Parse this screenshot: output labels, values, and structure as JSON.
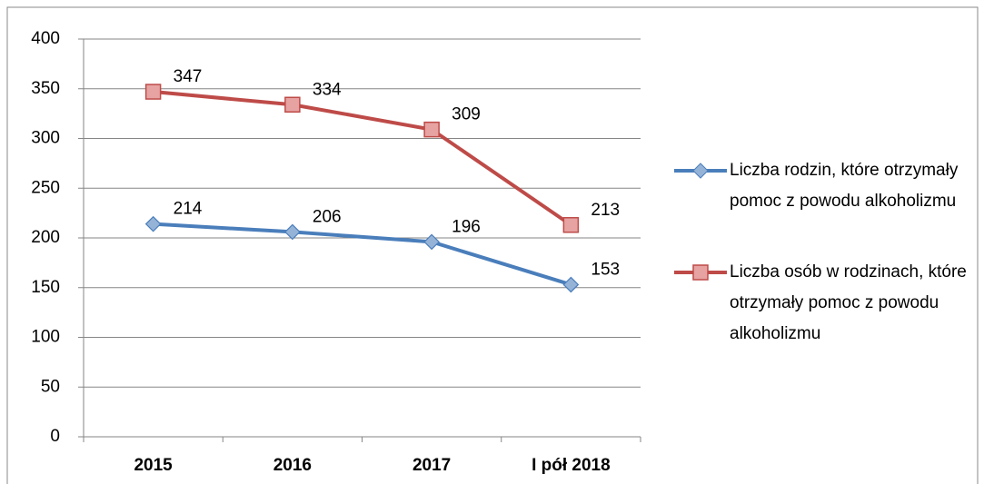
{
  "chart_data": {
    "type": "line",
    "categories": [
      "2015",
      "2016",
      "2017",
      "I pół 2018"
    ],
    "series": [
      {
        "name": "Liczba rodzin, które otrzymały pomoc z powodu alkoholizmu",
        "color": "#4a7ebb",
        "marker_fill": "#95b3d7",
        "marker": "diamond",
        "values": [
          214,
          206,
          196,
          153
        ]
      },
      {
        "name": "Liczba osób w rodzinach, które otrzymały pomoc z powodu alkoholizmu",
        "color": "#be4b48",
        "marker_fill": "#e6a3a2",
        "marker": "square",
        "values": [
          347,
          334,
          309,
          213
        ]
      }
    ],
    "ylim": [
      0,
      400
    ],
    "yticks": [
      0,
      50,
      100,
      150,
      200,
      250,
      300,
      350,
      400
    ],
    "grid": true,
    "legend": "right"
  }
}
